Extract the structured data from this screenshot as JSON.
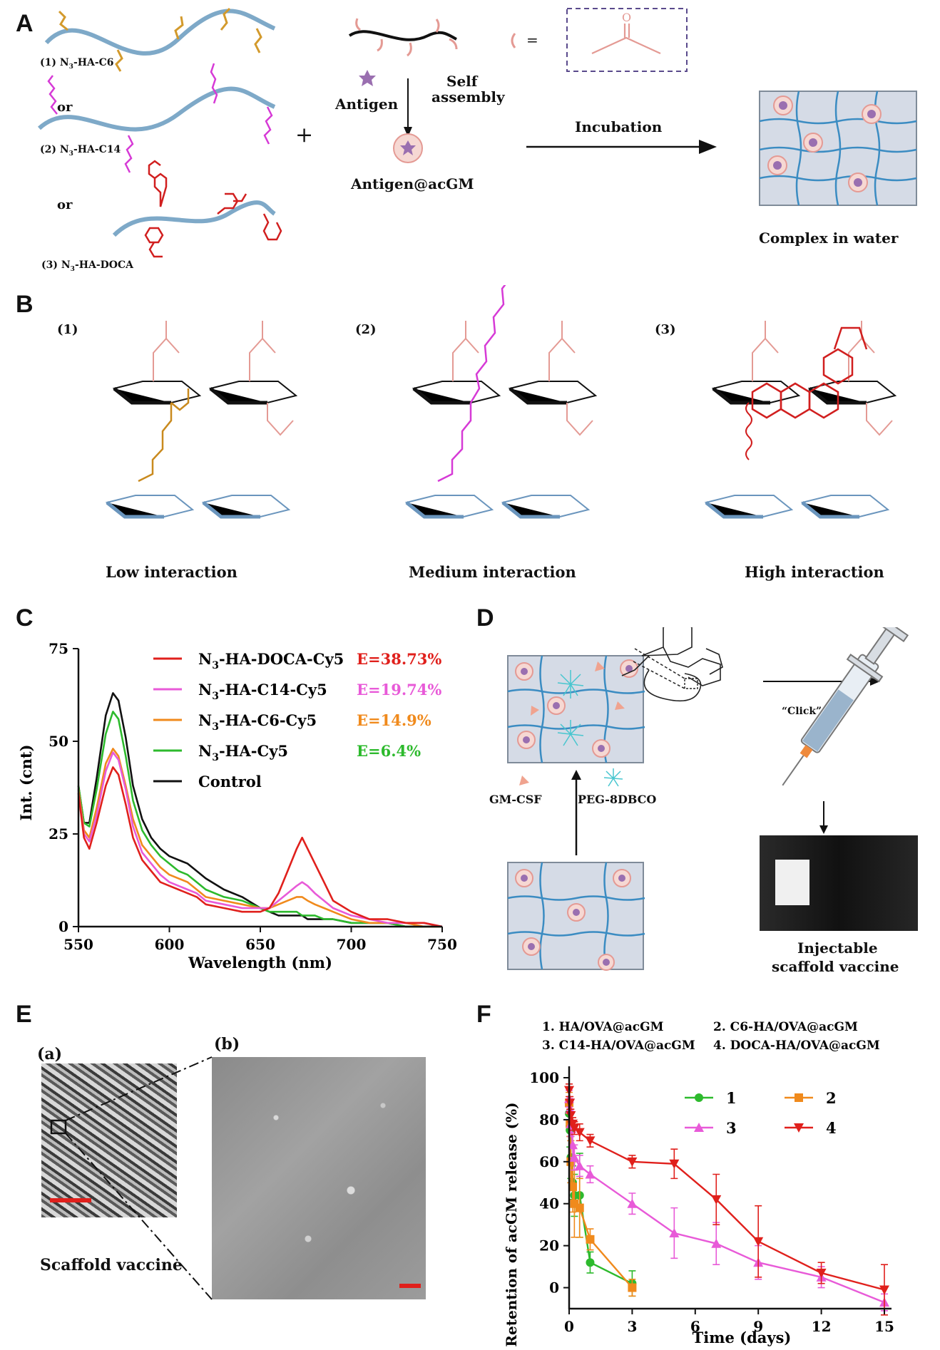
{
  "panels": {
    "A": "A",
    "B": "B",
    "C": "C",
    "D": "D",
    "E": "E",
    "F": "F"
  },
  "panelA": {
    "polymers": [
      {
        "label": "(1) N",
        "sub": "3",
        "suffix": "-HA-C6"
      },
      {
        "label": "(2) N",
        "sub": "3",
        "suffix": "-HA-C14"
      },
      {
        "label": "(3) N",
        "sub": "3",
        "suffix": "-HA-DOCA"
      }
    ],
    "or_label": "or",
    "plus": "+",
    "antigen_label": "Antigen",
    "self_assembly_1": "Self",
    "self_assembly_2": "assembly",
    "antigen_acgm_label": "Antigen@acGM",
    "equals": "=",
    "incubation_label": "Incubation",
    "complex_label": "Complex in water",
    "colors": {
      "hydrogel": "#7ea9c8",
      "c6": "#d39a2c",
      "c14": "#d63ad6",
      "doca": "#d11f1f",
      "acgm": "#e49a94",
      "antigen": "#9a6fb0"
    }
  },
  "panelB": {
    "items": [
      {
        "number": "(1)",
        "caption": "Low interaction"
      },
      {
        "number": "(2)",
        "caption": "Medium interaction"
      },
      {
        "number": "(3)",
        "caption": "High interaction"
      }
    ]
  },
  "panelD": {
    "click_label": "“Click”",
    "gmcsf_label": "GM-CSF",
    "peg_label": "PEG-8DBCO",
    "caption_1": "Injectable",
    "caption_2": "scaffold vaccine"
  },
  "panelE": {
    "a_label": "(a)",
    "b_label": "(b)",
    "caption": "Scaffold vaccine"
  },
  "chart_data": [
    {
      "type": "line",
      "panel": "C",
      "xlabel": "Wavelength (nm)",
      "ylabel": "Int. (cnt)",
      "xlim": [
        550,
        750
      ],
      "ylim": [
        0,
        75
      ],
      "xticks": [
        550,
        600,
        650,
        700,
        750
      ],
      "yticks": [
        0,
        25,
        50,
        75
      ],
      "legend": "top-right",
      "series": [
        {
          "name": "N3-HA-DOCA-Cy5",
          "name_parts": [
            "N",
            "3",
            "-HA-DOCA-Cy5"
          ],
          "efficiency": "E=38.73%",
          "color": "#e0201c",
          "x": [
            550,
            553,
            556,
            560,
            565,
            569,
            572,
            576,
            580,
            585,
            590,
            595,
            600,
            605,
            610,
            615,
            620,
            630,
            640,
            650,
            655,
            660,
            665,
            670,
            673,
            676,
            680,
            685,
            690,
            700,
            710,
            720,
            730,
            740,
            750
          ],
          "y": [
            36,
            24,
            21,
            28,
            38,
            43,
            41,
            33,
            24,
            18,
            15,
            12,
            11,
            10,
            9,
            8,
            6,
            5,
            4,
            4,
            5,
            9,
            15,
            21,
            24,
            21,
            17,
            12,
            7,
            4,
            2,
            2,
            1,
            1,
            0
          ]
        },
        {
          "name": "N3-HA-C14-Cy5",
          "name_parts": [
            "N",
            "3",
            "-HA-C14-Cy5"
          ],
          "efficiency": "E=19.74%",
          "color": "#e85ad8",
          "x": [
            550,
            553,
            556,
            560,
            565,
            569,
            572,
            576,
            580,
            585,
            590,
            595,
            600,
            605,
            610,
            615,
            620,
            630,
            640,
            650,
            655,
            660,
            665,
            670,
            673,
            676,
            680,
            685,
            690,
            700,
            710,
            720,
            730,
            740,
            750
          ],
          "y": [
            36,
            25,
            23,
            30,
            42,
            47,
            45,
            37,
            27,
            20,
            17,
            14,
            12,
            11,
            10,
            9,
            7,
            6,
            5,
            5,
            5,
            7,
            9,
            11,
            12,
            11,
            9,
            7,
            5,
            3,
            2,
            1,
            1,
            1,
            0
          ]
        },
        {
          "name": "N3-HA-C6-Cy5",
          "name_parts": [
            "N",
            "3",
            "-HA-C6-Cy5"
          ],
          "efficiency": "E=14.9%",
          "color": "#f08a1c",
          "x": [
            550,
            553,
            556,
            560,
            565,
            569,
            572,
            576,
            580,
            585,
            590,
            595,
            600,
            605,
            610,
            615,
            620,
            630,
            640,
            650,
            655,
            660,
            665,
            670,
            673,
            676,
            680,
            685,
            690,
            700,
            710,
            720,
            730,
            740,
            750
          ],
          "y": [
            37,
            26,
            24,
            32,
            44,
            48,
            46,
            38,
            29,
            22,
            19,
            16,
            14,
            13,
            12,
            10,
            8,
            7,
            6,
            5,
            5,
            6,
            7,
            8,
            8,
            7,
            6,
            5,
            4,
            2,
            1,
            1,
            1,
            0,
            0
          ]
        },
        {
          "name": "N3-HA-Cy5",
          "name_parts": [
            "N",
            "3",
            "-HA-Cy5"
          ],
          "efficiency": "E=6.4%",
          "color": "#2dba2d",
          "x": [
            550,
            553,
            556,
            560,
            565,
            569,
            572,
            576,
            580,
            585,
            590,
            595,
            600,
            605,
            610,
            615,
            620,
            630,
            640,
            650,
            655,
            660,
            665,
            670,
            673,
            676,
            680,
            685,
            690,
            700,
            710,
            720,
            730,
            740,
            750
          ],
          "y": [
            38,
            28,
            27,
            37,
            52,
            58,
            56,
            46,
            34,
            26,
            22,
            19,
            17,
            15,
            14,
            12,
            10,
            8,
            7,
            5,
            4,
            4,
            4,
            4,
            3,
            3,
            3,
            2,
            2,
            1,
            1,
            1,
            0,
            0,
            0
          ]
        },
        {
          "name": "Control",
          "name_parts": [
            "",
            "",
            "Control"
          ],
          "efficiency": "",
          "color": "#111111",
          "x": [
            550,
            553,
            556,
            560,
            565,
            569,
            572,
            576,
            580,
            585,
            590,
            595,
            600,
            605,
            610,
            615,
            620,
            630,
            640,
            650,
            655,
            660,
            665,
            670,
            673,
            676,
            680,
            685,
            690,
            700,
            710,
            720,
            730,
            740,
            750
          ],
          "y": [
            38,
            28,
            28,
            40,
            57,
            63,
            61,
            51,
            38,
            29,
            24,
            21,
            19,
            18,
            17,
            15,
            13,
            10,
            8,
            5,
            4,
            3,
            3,
            3,
            3,
            2,
            2,
            2,
            2,
            1,
            1,
            1,
            0,
            0,
            0
          ]
        }
      ]
    },
    {
      "type": "line",
      "panel": "F",
      "xlabel": "Time (days)",
      "ylabel": "Retention of acGM release (%)",
      "xlim": [
        0,
        15
      ],
      "ylim": [
        -10,
        100
      ],
      "xticks": [
        0,
        3,
        6,
        9,
        12,
        15
      ],
      "yticks": [
        0,
        20,
        40,
        60,
        80,
        100
      ],
      "legend_header": [
        "1. HA/OVA@acGM",
        "2. C6-HA/OVA@acGM",
        "3. C14-HA/OVA@acGM",
        "4. DOCA-HA/OVA@acGM"
      ],
      "legend": "top-right",
      "series": [
        {
          "name": "1",
          "color": "#2dba2d",
          "marker": "circle",
          "x": [
            0,
            0.04,
            0.08,
            0.17,
            0.25,
            0.5,
            1,
            3
          ],
          "y": [
            83,
            75,
            62,
            50,
            44,
            44,
            12,
            2
          ],
          "err": [
            6,
            8,
            10,
            8,
            10,
            20,
            5,
            6
          ]
        },
        {
          "name": "2",
          "color": "#f08a1c",
          "marker": "square",
          "x": [
            0,
            0.04,
            0.08,
            0.17,
            0.25,
            0.5,
            1,
            3
          ],
          "y": [
            88,
            78,
            60,
            48,
            40,
            38,
            23,
            0
          ],
          "err": [
            5,
            6,
            10,
            12,
            16,
            14,
            5,
            4
          ]
        },
        {
          "name": "3",
          "color": "#e85ad8",
          "marker": "triangle-up",
          "x": [
            0,
            0.04,
            0.08,
            0.17,
            0.25,
            0.5,
            1,
            3,
            5,
            7,
            9,
            12,
            15
          ],
          "y": [
            90,
            85,
            78,
            68,
            62,
            58,
            54,
            40,
            26,
            21,
            12,
            5,
            -7
          ],
          "err": [
            4,
            5,
            6,
            6,
            6,
            5,
            4,
            5,
            12,
            10,
            8,
            5,
            4
          ]
        },
        {
          "name": "4",
          "color": "#e0201c",
          "marker": "triangle-down",
          "x": [
            0,
            0.04,
            0.08,
            0.17,
            0.25,
            0.5,
            1,
            3,
            5,
            7,
            9,
            12,
            15
          ],
          "y": [
            94,
            88,
            82,
            78,
            76,
            74,
            70,
            60,
            59,
            42,
            22,
            7,
            -1
          ],
          "err": [
            3,
            3,
            3,
            3,
            3,
            4,
            3,
            3,
            7,
            12,
            17,
            5,
            12
          ]
        }
      ]
    }
  ]
}
